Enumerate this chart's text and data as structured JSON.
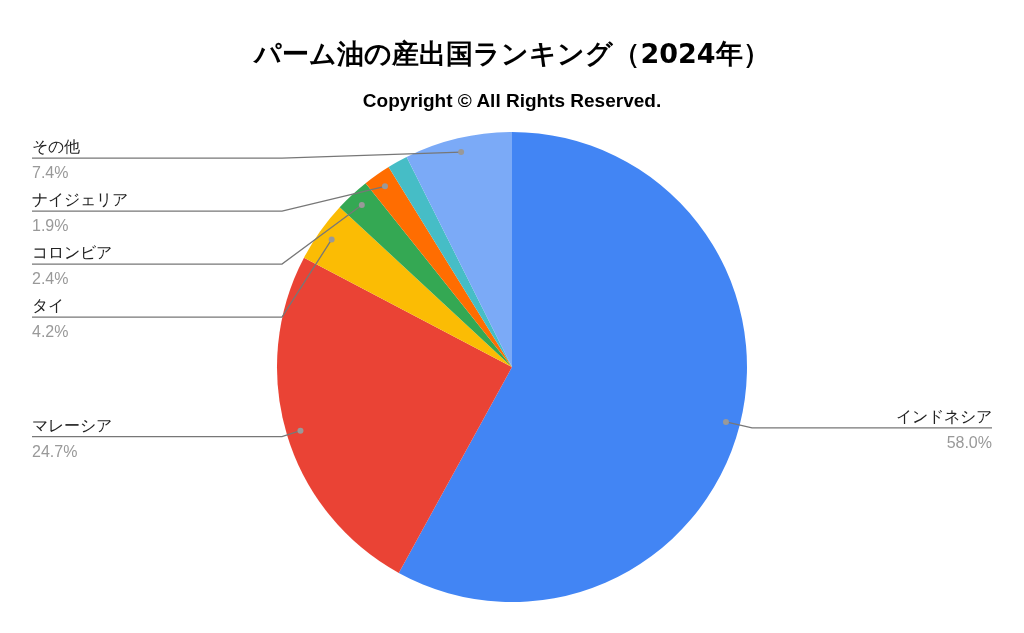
{
  "chart_data": {
    "type": "pie",
    "title": "パーム油の産出国ランキング（2024年）",
    "subtitle": "Copyright © All Rights Reserved.",
    "categories": [
      "インドネシア",
      "マレーシア",
      "タイ",
      "コロンビア",
      "ナイジェリア",
      null,
      "その他"
    ],
    "values": [
      58.0,
      24.7,
      4.2,
      2.4,
      1.9,
      1.4,
      7.4
    ],
    "colors": [
      "#4285f4",
      "#ea4335",
      "#fbbc04",
      "#34a853",
      "#ff6d01",
      "#46bdc6",
      "#7baaf7"
    ],
    "value_labels": [
      "58.0%",
      "24.7%",
      "4.2%",
      "2.4%",
      "1.9%",
      null,
      "7.4%"
    ],
    "legend": false
  }
}
